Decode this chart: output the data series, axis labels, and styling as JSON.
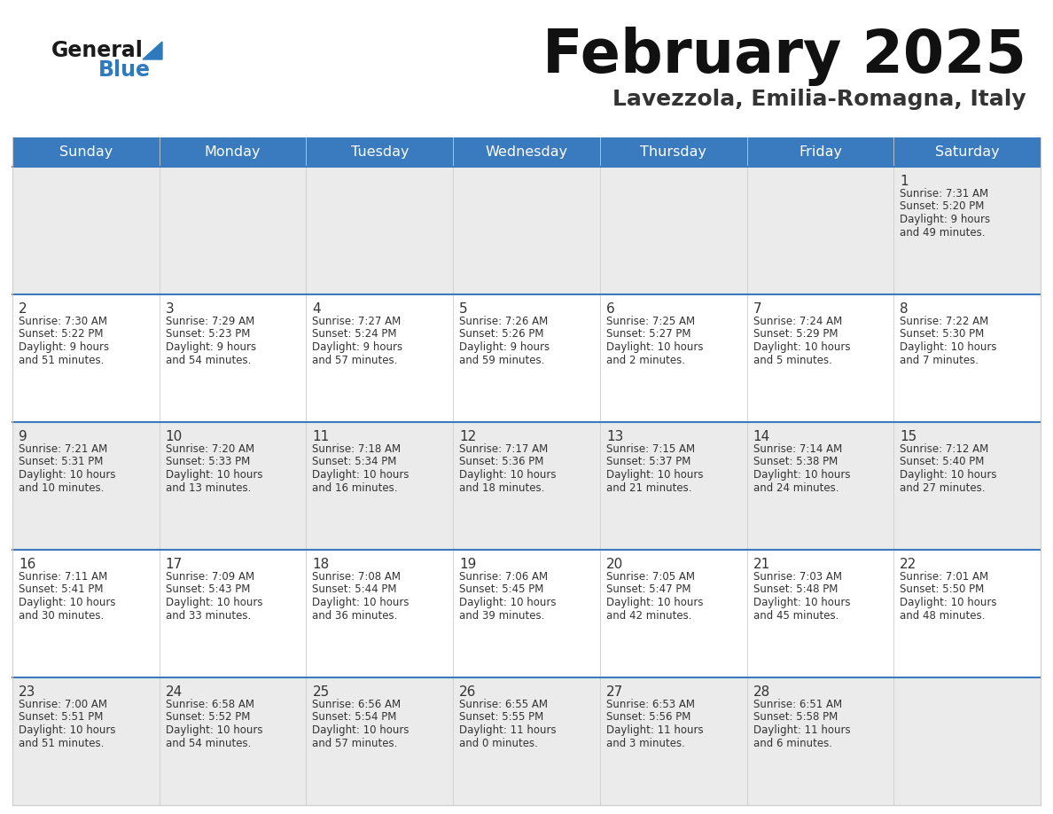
{
  "title": "February 2025",
  "subtitle": "Lavezzola, Emilia-Romagna, Italy",
  "header_bg": "#3a7abf",
  "header_text_color": "#ffffff",
  "day_headers": [
    "Sunday",
    "Monday",
    "Tuesday",
    "Wednesday",
    "Thursday",
    "Friday",
    "Saturday"
  ],
  "cell_bg_odd": "#ebebeb",
  "cell_bg_even": "#ffffff",
  "divider_color": "#3a7abf",
  "cell_border_color": "#cccccc",
  "cell_text_color": "#333333",
  "day_num_color": "#333333",
  "title_color": "#111111",
  "subtitle_color": "#333333",
  "logo_general_color": "#1a1a1a",
  "logo_blue_color": "#2f7abf",
  "calendar_data": [
    [
      null,
      null,
      null,
      null,
      null,
      null,
      {
        "day": 1,
        "sunrise": "7:31 AM",
        "sunset": "5:20 PM",
        "daylight": "9 hours",
        "daylight2": "and 49 minutes."
      }
    ],
    [
      {
        "day": 2,
        "sunrise": "7:30 AM",
        "sunset": "5:22 PM",
        "daylight": "9 hours",
        "daylight2": "and 51 minutes."
      },
      {
        "day": 3,
        "sunrise": "7:29 AM",
        "sunset": "5:23 PM",
        "daylight": "9 hours",
        "daylight2": "and 54 minutes."
      },
      {
        "day": 4,
        "sunrise": "7:27 AM",
        "sunset": "5:24 PM",
        "daylight": "9 hours",
        "daylight2": "and 57 minutes."
      },
      {
        "day": 5,
        "sunrise": "7:26 AM",
        "sunset": "5:26 PM",
        "daylight": "9 hours",
        "daylight2": "and 59 minutes."
      },
      {
        "day": 6,
        "sunrise": "7:25 AM",
        "sunset": "5:27 PM",
        "daylight": "10 hours",
        "daylight2": "and 2 minutes."
      },
      {
        "day": 7,
        "sunrise": "7:24 AM",
        "sunset": "5:29 PM",
        "daylight": "10 hours",
        "daylight2": "and 5 minutes."
      },
      {
        "day": 8,
        "sunrise": "7:22 AM",
        "sunset": "5:30 PM",
        "daylight": "10 hours",
        "daylight2": "and 7 minutes."
      }
    ],
    [
      {
        "day": 9,
        "sunrise": "7:21 AM",
        "sunset": "5:31 PM",
        "daylight": "10 hours",
        "daylight2": "and 10 minutes."
      },
      {
        "day": 10,
        "sunrise": "7:20 AM",
        "sunset": "5:33 PM",
        "daylight": "10 hours",
        "daylight2": "and 13 minutes."
      },
      {
        "day": 11,
        "sunrise": "7:18 AM",
        "sunset": "5:34 PM",
        "daylight": "10 hours",
        "daylight2": "and 16 minutes."
      },
      {
        "day": 12,
        "sunrise": "7:17 AM",
        "sunset": "5:36 PM",
        "daylight": "10 hours",
        "daylight2": "and 18 minutes."
      },
      {
        "day": 13,
        "sunrise": "7:15 AM",
        "sunset": "5:37 PM",
        "daylight": "10 hours",
        "daylight2": "and 21 minutes."
      },
      {
        "day": 14,
        "sunrise": "7:14 AM",
        "sunset": "5:38 PM",
        "daylight": "10 hours",
        "daylight2": "and 24 minutes."
      },
      {
        "day": 15,
        "sunrise": "7:12 AM",
        "sunset": "5:40 PM",
        "daylight": "10 hours",
        "daylight2": "and 27 minutes."
      }
    ],
    [
      {
        "day": 16,
        "sunrise": "7:11 AM",
        "sunset": "5:41 PM",
        "daylight": "10 hours",
        "daylight2": "and 30 minutes."
      },
      {
        "day": 17,
        "sunrise": "7:09 AM",
        "sunset": "5:43 PM",
        "daylight": "10 hours",
        "daylight2": "and 33 minutes."
      },
      {
        "day": 18,
        "sunrise": "7:08 AM",
        "sunset": "5:44 PM",
        "daylight": "10 hours",
        "daylight2": "and 36 minutes."
      },
      {
        "day": 19,
        "sunrise": "7:06 AM",
        "sunset": "5:45 PM",
        "daylight": "10 hours",
        "daylight2": "and 39 minutes."
      },
      {
        "day": 20,
        "sunrise": "7:05 AM",
        "sunset": "5:47 PM",
        "daylight": "10 hours",
        "daylight2": "and 42 minutes."
      },
      {
        "day": 21,
        "sunrise": "7:03 AM",
        "sunset": "5:48 PM",
        "daylight": "10 hours",
        "daylight2": "and 45 minutes."
      },
      {
        "day": 22,
        "sunrise": "7:01 AM",
        "sunset": "5:50 PM",
        "daylight": "10 hours",
        "daylight2": "and 48 minutes."
      }
    ],
    [
      {
        "day": 23,
        "sunrise": "7:00 AM",
        "sunset": "5:51 PM",
        "daylight": "10 hours",
        "daylight2": "and 51 minutes."
      },
      {
        "day": 24,
        "sunrise": "6:58 AM",
        "sunset": "5:52 PM",
        "daylight": "10 hours",
        "daylight2": "and 54 minutes."
      },
      {
        "day": 25,
        "sunrise": "6:56 AM",
        "sunset": "5:54 PM",
        "daylight": "10 hours",
        "daylight2": "and 57 minutes."
      },
      {
        "day": 26,
        "sunrise": "6:55 AM",
        "sunset": "5:55 PM",
        "daylight": "11 hours",
        "daylight2": "and 0 minutes."
      },
      {
        "day": 27,
        "sunrise": "6:53 AM",
        "sunset": "5:56 PM",
        "daylight": "11 hours",
        "daylight2": "and 3 minutes."
      },
      {
        "day": 28,
        "sunrise": "6:51 AM",
        "sunset": "5:58 PM",
        "daylight": "11 hours",
        "daylight2": "and 6 minutes."
      },
      null
    ]
  ]
}
